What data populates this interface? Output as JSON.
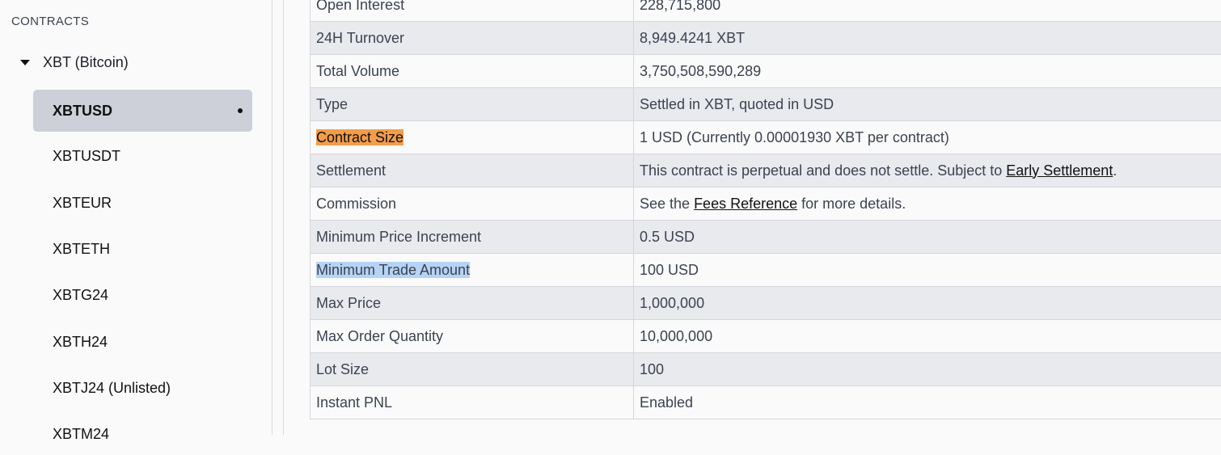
{
  "sidebar": {
    "heading": "CONTRACTS",
    "group": "XBT (Bitcoin)",
    "items": [
      {
        "label": "XBTUSD",
        "selected": true
      },
      {
        "label": "XBTUSDT"
      },
      {
        "label": "XBTEUR"
      },
      {
        "label": "XBTETH"
      },
      {
        "label": "XBTG24"
      },
      {
        "label": "XBTH24"
      },
      {
        "label": "XBTJ24 (Unlisted)"
      },
      {
        "label": "XBTM24"
      }
    ]
  },
  "table": {
    "rows": [
      {
        "key": "Open Interest",
        "value": "228,715,800"
      },
      {
        "key": "24H Turnover",
        "value": "8,949.4241 XBT"
      },
      {
        "key": "Total Volume",
        "value": "3,750,508,590,289"
      },
      {
        "key": "Type",
        "value": "Settled in XBT, quoted in USD"
      },
      {
        "key": "Contract Size",
        "value": "1 USD (Currently 0.00001930 XBT per contract)"
      },
      {
        "key": "Settlement",
        "value_pre": "This contract is perpetual and does not settle. Subject to ",
        "link": "Early Settlement",
        "value_post": "."
      },
      {
        "key": "Commission",
        "value_pre": "See the ",
        "link": "Fees Reference",
        "value_post": " for more details."
      },
      {
        "key": "Minimum Price Increment",
        "value": "0.5 USD"
      },
      {
        "key": "Minimum Trade Amount",
        "value": "100 USD"
      },
      {
        "key": "Max Price",
        "value": "1,000,000"
      },
      {
        "key": "Max Order Quantity",
        "value": "10,000,000"
      },
      {
        "key": "Lot Size",
        "value": "100"
      },
      {
        "key": "Instant PNL",
        "value": "Enabled"
      }
    ]
  },
  "colors": {
    "highlight_orange": "#f39c4a",
    "highlight_blue": "#b5d3f5",
    "selected_item": "#cdd0d8"
  }
}
